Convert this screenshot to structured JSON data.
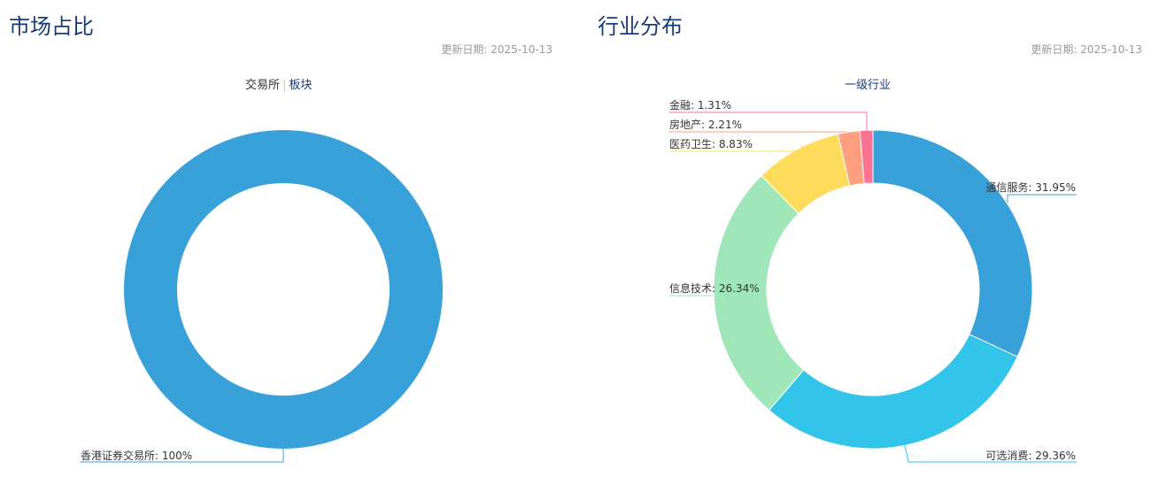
{
  "panels": {
    "market": {
      "title": "市场占比",
      "update_date": "更新日期: 2025-10-13",
      "tabs": {
        "active": "交易所",
        "other": "板块"
      }
    },
    "industry": {
      "title": "行业分布",
      "update_date": "更新日期: 2025-10-13",
      "tabs": {
        "active": "一级行业"
      }
    }
  },
  "chart_data": [
    {
      "type": "pie",
      "variant": "donut",
      "categories": [
        "香港证券交易所"
      ],
      "values": [
        100
      ],
      "labels": [
        "香港证券交易所: 100%"
      ],
      "colors": [
        "#38a1da"
      ]
    },
    {
      "type": "pie",
      "variant": "donut",
      "categories": [
        "通信服务",
        "可选消费",
        "信息技术",
        "医药卫生",
        "房地产",
        "金融"
      ],
      "values": [
        31.95,
        29.36,
        26.34,
        8.83,
        2.21,
        1.31
      ],
      "labels": [
        "通信服务: 31.95%",
        "可选消费: 29.36%",
        "信息技术: 26.34%",
        "医药卫生: 8.83%",
        "房地产: 2.21%",
        "金融: 1.31%"
      ],
      "colors": [
        "#38a1da",
        "#32c5e9",
        "#9fe6b8",
        "#ffdb5c",
        "#ff9f7f",
        "#fb7293"
      ]
    }
  ]
}
